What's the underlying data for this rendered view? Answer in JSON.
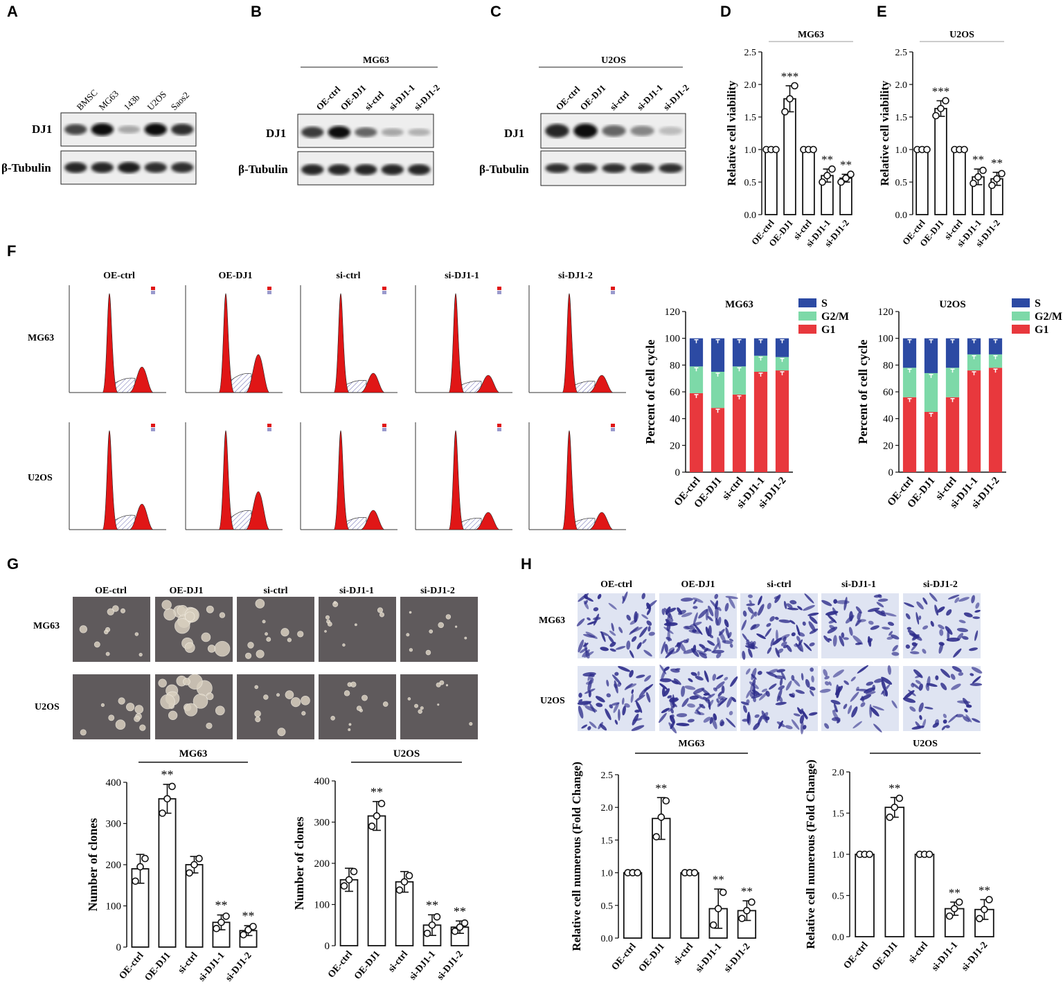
{
  "panels": {
    "A": {
      "label": "A",
      "lanes": [
        "BMSC",
        "MG63",
        "143b",
        "U2OS",
        "Saos2"
      ],
      "rows": [
        "DJ1",
        "β-Tubulin"
      ],
      "dj1_intensity": [
        0.75,
        1.0,
        0.3,
        1.0,
        0.85
      ],
      "tub_intensity": [
        0.9,
        0.9,
        0.95,
        0.85,
        0.85
      ]
    },
    "B": {
      "label": "B",
      "cell_line": "MG63",
      "lanes": [
        "OE-ctrl",
        "OE-DJ1",
        "si-ctrl",
        "si-DJ1-1",
        "si-DJ1-2"
      ],
      "rows": [
        "DJ1",
        "β-Tubulin"
      ],
      "dj1_intensity": [
        0.8,
        1.0,
        0.6,
        0.3,
        0.25
      ],
      "tub_intensity": [
        0.9,
        0.9,
        0.9,
        0.9,
        0.9
      ]
    },
    "C": {
      "label": "C",
      "cell_line": "U2OS",
      "lanes": [
        "OE-ctrl",
        "OE-DJ1",
        "si-ctrl",
        "si-DJ1-1",
        "si-DJ1-2"
      ],
      "rows": [
        "DJ1",
        "β-Tubulin"
      ],
      "dj1_intensity": [
        0.9,
        1.0,
        0.6,
        0.45,
        0.2
      ],
      "tub_intensity": [
        0.85,
        0.85,
        0.85,
        0.85,
        0.85
      ]
    },
    "F": {
      "label": "F",
      "groups": [
        "OE-ctrl",
        "OE-DJ1",
        "si-ctrl",
        "si-DJ1-1",
        "si-DJ1-2"
      ],
      "rows": [
        "MG63",
        "U2OS"
      ],
      "g2_height": [
        0.18,
        0.3,
        0.12,
        0.1,
        0.1
      ]
    },
    "G": {
      "label": "G",
      "groups": [
        "OE-ctrl",
        "OE-DJ1",
        "si-ctrl",
        "si-DJ1-1",
        "si-DJ1-2"
      ],
      "rows": [
        "MG63",
        "U2OS"
      ]
    },
    "H": {
      "label": "H",
      "groups": [
        "OE-ctrl",
        "OE-DJ1",
        "si-ctrl",
        "si-DJ1-1",
        "si-DJ1-2"
      ],
      "rows": [
        "MG63",
        "U2OS"
      ]
    }
  },
  "chart_data": [
    {
      "id": "D",
      "panel": "D",
      "type": "bar",
      "title": "MG63",
      "categories": [
        "OE-ctrl",
        "OE-DJ1",
        "si-ctrl",
        "si-DJ1-1",
        "si-DJ1-2"
      ],
      "values": [
        1.0,
        1.78,
        1.0,
        0.6,
        0.56
      ],
      "errors": [
        0.01,
        0.2,
        0.01,
        0.1,
        0.06
      ],
      "points": [
        [
          1,
          1,
          1
        ],
        [
          1.58,
          1.78,
          1.98
        ],
        [
          1,
          1,
          1
        ],
        [
          0.5,
          0.6,
          0.7
        ],
        [
          0.5,
          0.56,
          0.62
        ]
      ],
      "sig": [
        "",
        "***",
        "",
        "**",
        "**"
      ],
      "ylabel": "Relative cell viability",
      "ylim": [
        0,
        2.5
      ],
      "yticks": [
        "0.0",
        "0.5",
        "1.0",
        "1.5",
        "2.0",
        "2.5"
      ],
      "ytickvals": [
        0,
        0.5,
        1,
        1.5,
        2,
        2.5
      ]
    },
    {
      "id": "E",
      "panel": "E",
      "type": "bar",
      "title": "U2OS",
      "categories": [
        "OE-ctrl",
        "OE-DJ1",
        "si-ctrl",
        "si-DJ1-1",
        "si-DJ1-2"
      ],
      "values": [
        1.0,
        1.63,
        1.0,
        0.58,
        0.55
      ],
      "errors": [
        0.01,
        0.12,
        0.01,
        0.12,
        0.1
      ],
      "points": [
        [
          1,
          1,
          1
        ],
        [
          1.52,
          1.63,
          1.75
        ],
        [
          1,
          1,
          1
        ],
        [
          0.48,
          0.58,
          0.68
        ],
        [
          0.45,
          0.55,
          0.63
        ]
      ],
      "sig": [
        "",
        "***",
        "",
        "**",
        "**"
      ],
      "ylabel": "Relative cell viability",
      "ylim": [
        0,
        2.5
      ],
      "yticks": [
        "0.0",
        "0.5",
        "1.0",
        "1.5",
        "2.0",
        "2.5"
      ],
      "ytickvals": [
        0,
        0.5,
        1,
        1.5,
        2,
        2.5
      ]
    },
    {
      "id": "F1",
      "type": "bar",
      "title": "MG63",
      "categories": [
        "OE-ctrl",
        "OE-DJ1",
        "si-ctrl",
        "si-DJ1-1",
        "si-DJ1-2"
      ],
      "series": [
        {
          "name": "G1",
          "values": [
            59,
            48,
            58,
            75,
            76
          ],
          "color": "#e8383d"
        },
        {
          "name": "G2/M",
          "values": [
            20,
            27,
            21,
            12,
            10
          ],
          "color": "#7dd9a8"
        },
        {
          "name": "S",
          "values": [
            21,
            25,
            21,
            13,
            14
          ],
          "color": "#2c4aa3"
        }
      ],
      "ylabel": "Percent of cell cycle",
      "ylim": [
        0,
        120
      ],
      "yticks": [
        "0",
        "20",
        "40",
        "60",
        "80",
        "100",
        "120"
      ],
      "ytickvals": [
        0,
        20,
        40,
        60,
        80,
        100,
        120
      ]
    },
    {
      "id": "F2",
      "type": "bar",
      "title": "U2OS",
      "categories": [
        "OE-ctrl",
        "OE-DJ1",
        "si-ctrl",
        "si-DJ1-1",
        "si-DJ1-2"
      ],
      "series": [
        {
          "name": "G1",
          "values": [
            56,
            45,
            56,
            76,
            78
          ],
          "color": "#e8383d"
        },
        {
          "name": "G2/M",
          "values": [
            22,
            29,
            22,
            12,
            10
          ],
          "color": "#7dd9a8"
        },
        {
          "name": "S",
          "values": [
            22,
            26,
            22,
            12,
            12
          ],
          "color": "#2c4aa3"
        }
      ],
      "ylabel": "Percent of cell cycle",
      "ylim": [
        0,
        120
      ],
      "yticks": [
        "0",
        "20",
        "40",
        "60",
        "80",
        "100",
        "120"
      ],
      "ytickvals": [
        0,
        20,
        40,
        60,
        80,
        100,
        120
      ]
    },
    {
      "id": "G1",
      "type": "bar",
      "title": "MG63",
      "categories": [
        "OE-ctrl",
        "OE-DJ1",
        "si-ctrl",
        "si-DJ1-1",
        "si-DJ1-2"
      ],
      "values": [
        190,
        360,
        200,
        60,
        40
      ],
      "errors": [
        35,
        35,
        20,
        18,
        12
      ],
      "points": [
        [
          160,
          195,
          215
        ],
        [
          325,
          360,
          390
        ],
        [
          180,
          200,
          215
        ],
        [
          45,
          60,
          75
        ],
        [
          30,
          42,
          50
        ]
      ],
      "sig": [
        "",
        "**",
        "",
        "**",
        "**"
      ],
      "ylabel": "Number of clones",
      "ylim": [
        0,
        400
      ],
      "yticks": [
        "0",
        "100",
        "200",
        "300",
        "400"
      ],
      "ytickvals": [
        0,
        100,
        200,
        300,
        400
      ]
    },
    {
      "id": "G2",
      "type": "bar",
      "title": "U2OS",
      "categories": [
        "OE-ctrl",
        "OE-DJ1",
        "si-ctrl",
        "si-DJ1-1",
        "si-DJ1-2"
      ],
      "values": [
        160,
        315,
        155,
        50,
        45
      ],
      "errors": [
        28,
        35,
        25,
        25,
        15
      ],
      "points": [
        [
          145,
          160,
          180
        ],
        [
          290,
          315,
          345
        ],
        [
          135,
          155,
          170
        ],
        [
          30,
          50,
          70
        ],
        [
          35,
          45,
          55
        ]
      ],
      "sig": [
        "",
        "**",
        "",
        "**",
        "**"
      ],
      "ylabel": "Number of clones",
      "ylim": [
        0,
        400
      ],
      "yticks": [
        "0",
        "100",
        "200",
        "300",
        "400"
      ],
      "ytickvals": [
        0,
        100,
        200,
        300,
        400
      ]
    },
    {
      "id": "H1",
      "type": "bar",
      "title": "MG63",
      "categories": [
        "OE-ctrl",
        "OE-DJ1",
        "si-ctrl",
        "si-DJ1-1",
        "si-DJ1-2"
      ],
      "values": [
        1.0,
        1.83,
        1.0,
        0.45,
        0.42
      ],
      "errors": [
        0.01,
        0.32,
        0.01,
        0.3,
        0.15
      ],
      "points": [
        [
          1,
          1,
          1
        ],
        [
          1.55,
          1.85,
          2.1
        ],
        [
          1,
          1,
          1
        ],
        [
          0.2,
          0.45,
          0.7
        ],
        [
          0.3,
          0.42,
          0.55
        ]
      ],
      "sig": [
        "",
        "**",
        "",
        "**",
        "**"
      ],
      "ylabel": "Relative cell numerous (Fold Change)",
      "ylim": [
        0,
        2.5
      ],
      "yticks": [
        "0.0",
        "0.5",
        "1.0",
        "1.5",
        "2.0",
        "2.5"
      ],
      "ytickvals": [
        0,
        0.5,
        1,
        1.5,
        2,
        2.5
      ]
    },
    {
      "id": "H2",
      "type": "bar",
      "title": "U2OS",
      "categories": [
        "OE-ctrl",
        "OE-DJ1",
        "si-ctrl",
        "si-DJ1-1",
        "si-DJ1-2"
      ],
      "values": [
        1.0,
        1.57,
        1.0,
        0.34,
        0.33
      ],
      "errors": [
        0.01,
        0.12,
        0.01,
        0.08,
        0.12
      ],
      "points": [
        [
          1,
          1,
          1
        ],
        [
          1.45,
          1.57,
          1.68
        ],
        [
          1,
          1,
          1
        ],
        [
          0.25,
          0.34,
          0.42
        ],
        [
          0.22,
          0.33,
          0.45
        ]
      ],
      "sig": [
        "",
        "**",
        "",
        "**",
        "**"
      ],
      "ylabel": "Relative cell numerous (Fold Change)",
      "ylim": [
        0,
        2.0
      ],
      "yticks": [
        "0.0",
        "0.5",
        "1.0",
        "1.5",
        "2.0"
      ],
      "ytickvals": [
        0,
        0.5,
        1,
        1.5,
        2
      ]
    }
  ]
}
